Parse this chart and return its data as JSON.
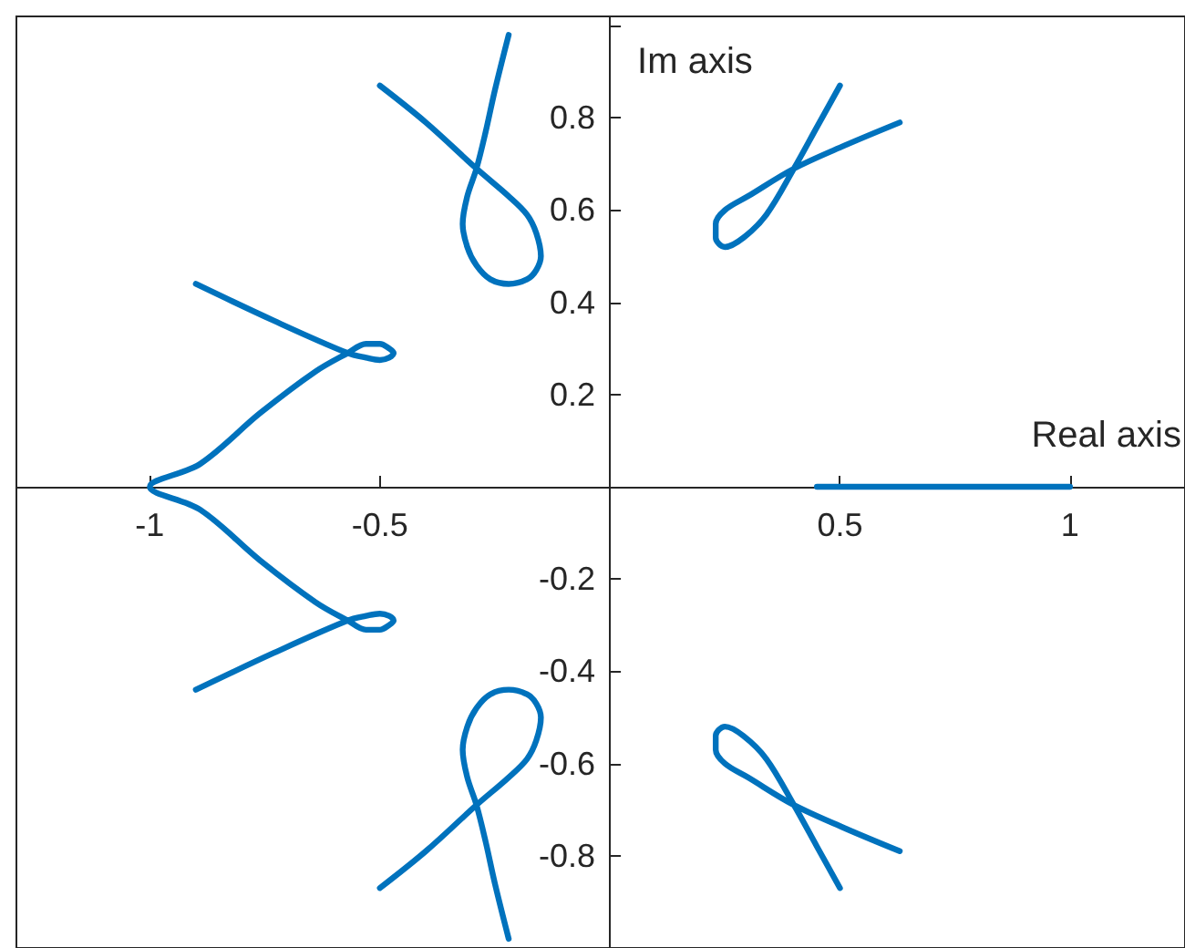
{
  "chart_data": {
    "type": "line",
    "xlabel": "Real axis",
    "ylabel": "Im axis",
    "xlim": [
      -1.29,
      1.25
    ],
    "ylim": [
      -1,
      1.02
    ],
    "xticks": [
      -1,
      -0.5,
      0.5,
      1
    ],
    "yticks": [
      {
        "value": -1,
        "label": null
      },
      -0.8,
      -0.6,
      -0.4,
      -0.2,
      0.2,
      0.4,
      0.6,
      0.8,
      {
        "value": 1,
        "label": null
      }
    ],
    "marker": "none",
    "line_style": "solid",
    "series": [
      {
        "color": "#0072bd",
        "x": [
          -0.5,
          -0.4,
          -0.29,
          -0.22,
          -0.18,
          -0.16,
          -0.15,
          -0.16,
          -0.18,
          -0.22,
          -0.26,
          -0.29,
          -0.31,
          -0.32,
          -0.31,
          -0.29,
          -0.27,
          -0.25,
          -0.22
        ],
        "values": [
          0.87,
          0.79,
          0.69,
          0.63,
          0.59,
          0.55,
          0.5,
          0.47,
          0.45,
          0.44,
          0.45,
          0.48,
          0.52,
          0.57,
          0.63,
          0.69,
          0.77,
          0.86,
          0.98
        ]
      },
      {
        "color": "#0072bd",
        "x": [
          -0.5,
          -0.4,
          -0.29,
          -0.22,
          -0.18,
          -0.16,
          -0.15,
          -0.16,
          -0.18,
          -0.22,
          -0.26,
          -0.29,
          -0.31,
          -0.32,
          -0.31,
          -0.29,
          -0.27,
          -0.25,
          -0.22
        ],
        "values": [
          -0.87,
          -0.79,
          -0.69,
          -0.63,
          -0.59,
          -0.55,
          -0.5,
          -0.47,
          -0.45,
          -0.44,
          -0.45,
          -0.48,
          -0.52,
          -0.57,
          -0.63,
          -0.69,
          -0.77,
          -0.86,
          -0.98
        ]
      },
      {
        "color": "#0072bd",
        "x": [
          -0.9,
          -0.73,
          -0.57,
          -0.53,
          -0.5,
          -0.48,
          -0.47,
          -0.48,
          -0.5,
          -0.53,
          -0.57,
          -0.64,
          -0.76,
          -0.89,
          -1,
          -0.89,
          -0.76,
          -0.64,
          -0.57,
          -0.53,
          -0.5,
          -0.48,
          -0.47,
          -0.48,
          -0.5,
          -0.53,
          -0.57,
          -0.73,
          -0.9
        ],
        "values": [
          0.44,
          0.36,
          0.29,
          0.28,
          0.275,
          0.28,
          0.29,
          0.3,
          0.31,
          0.31,
          0.29,
          0.25,
          0.16,
          0.05,
          0,
          -0.05,
          -0.16,
          -0.25,
          -0.29,
          -0.31,
          -0.31,
          -0.3,
          -0.29,
          -0.28,
          -0.275,
          -0.28,
          -0.29,
          -0.36,
          -0.44
        ]
      },
      {
        "color": "#0072bd",
        "x": [
          0.5,
          0.45,
          0.4,
          0.34,
          0.29,
          0.25,
          0.23,
          0.23,
          0.25,
          0.3,
          0.4,
          0.51,
          0.63
        ],
        "values": [
          0.87,
          0.78,
          0.69,
          0.59,
          0.54,
          0.52,
          0.54,
          0.57,
          0.6,
          0.63,
          0.69,
          0.74,
          0.79
        ]
      },
      {
        "color": "#0072bd",
        "x": [
          0.5,
          0.45,
          0.4,
          0.34,
          0.29,
          0.25,
          0.23,
          0.23,
          0.25,
          0.3,
          0.4,
          0.51,
          0.63
        ],
        "values": [
          -0.87,
          -0.78,
          -0.69,
          -0.59,
          -0.54,
          -0.52,
          -0.54,
          -0.57,
          -0.6,
          -0.63,
          -0.69,
          -0.74,
          -0.79
        ]
      },
      {
        "color": "#0072bd",
        "x": [
          0.45,
          1
        ],
        "values": [
          0,
          0
        ]
      }
    ]
  }
}
